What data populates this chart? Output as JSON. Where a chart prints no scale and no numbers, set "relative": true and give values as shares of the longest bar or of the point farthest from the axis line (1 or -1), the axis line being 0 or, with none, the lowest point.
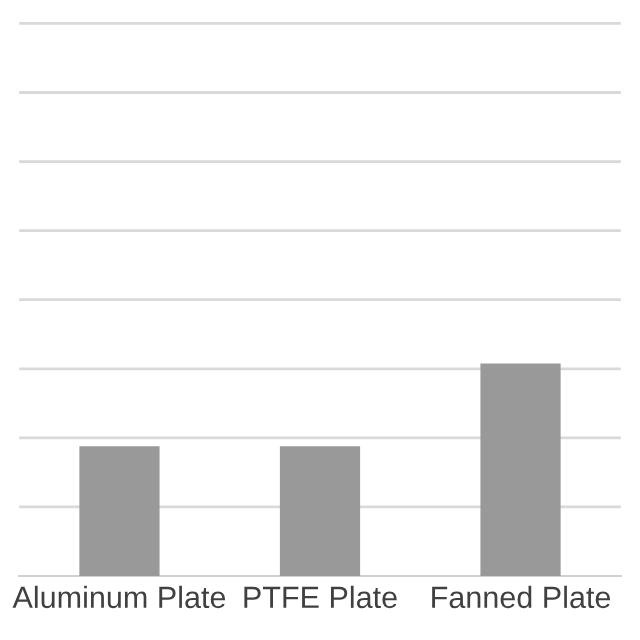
{
  "chart_data": {
    "type": "bar",
    "categories": [
      "Aluminum Plate",
      "PTFE Plate",
      "Fanned Plate"
    ],
    "values": [
      0.61,
      0.61,
      1
    ],
    "color": "#999999",
    "relative": true,
    "grid": "y",
    "legend": false
  }
}
